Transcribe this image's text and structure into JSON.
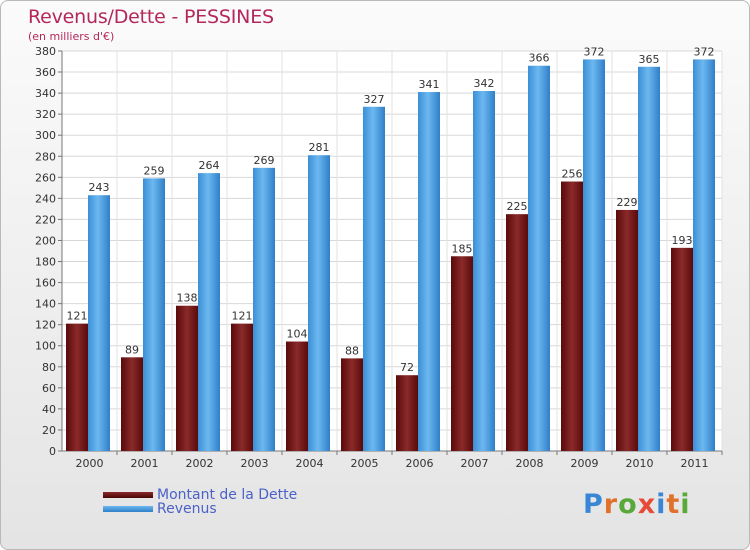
{
  "header": {
    "title": "Revenus/Dette - PESSINES",
    "subtitle": "(en milliers d'€)"
  },
  "legend": {
    "items": [
      {
        "label": "Montant de la Dette",
        "color": "#7a1414"
      },
      {
        "label": "Revenus",
        "color": "#4a9fe2"
      }
    ]
  },
  "logo": {
    "text": "Proxiti",
    "letter_colors": [
      "#3a86d6",
      "#e0702a",
      "#58a83a",
      "#e84a3a",
      "#3a86d6",
      "#e0702a",
      "#58a83a"
    ]
  },
  "chart_data": {
    "type": "bar",
    "title": "Revenus/Dette - PESSINES",
    "subtitle": "(en milliers d'€)",
    "categories": [
      "2000",
      "2001",
      "2002",
      "2003",
      "2004",
      "2005",
      "2006",
      "2007",
      "2008",
      "2009",
      "2010",
      "2011"
    ],
    "series": [
      {
        "name": "Montant de la Dette",
        "color": "#7a1414",
        "values": [
          121,
          89,
          138,
          121,
          104,
          88,
          72,
          185,
          225,
          256,
          229,
          193
        ]
      },
      {
        "name": "Revenus",
        "color": "#4a9fe2",
        "values": [
          243,
          259,
          264,
          269,
          281,
          327,
          341,
          342,
          366,
          372,
          365,
          372
        ]
      }
    ],
    "ylim": [
      0,
      380
    ],
    "ytick_step": 20,
    "grid": true,
    "legend_position": "bottom-left"
  }
}
